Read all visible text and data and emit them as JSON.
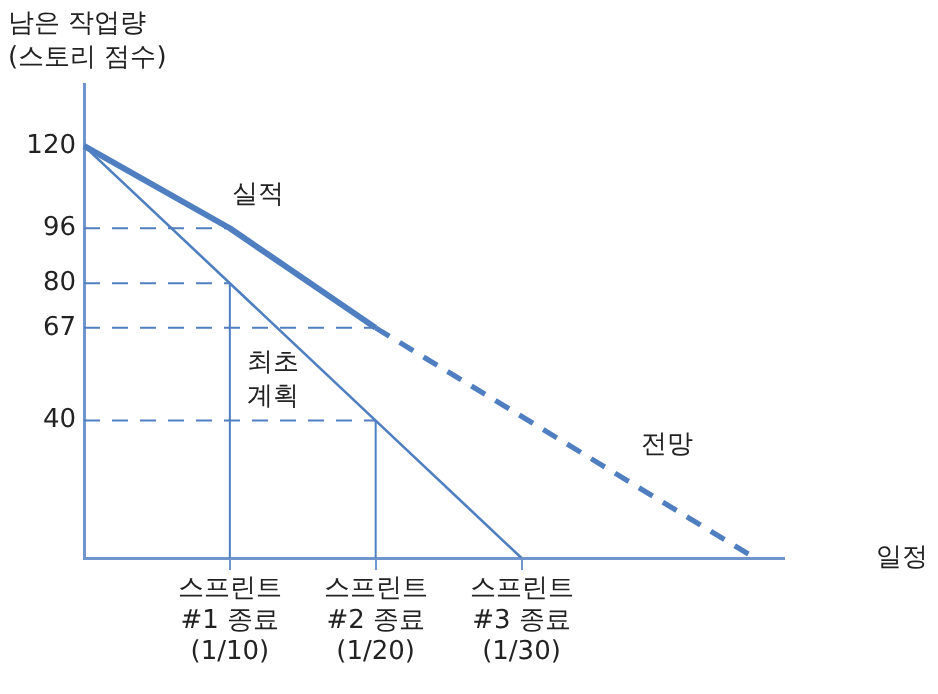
{
  "chart_data": {
    "type": "line",
    "ylabel": "남은 작업량\n(스토리 점수)",
    "xlabel": "일정",
    "categories": [
      null,
      null,
      null,
      null,
      null,
      "스프린트\n#1 종료\n(1/10)",
      null,
      null,
      null,
      null,
      "스프린트\n#2 종료\n(1/20)",
      null,
      null,
      null,
      null,
      "스프린트\n#3 종료\n(1/30)",
      null,
      null,
      null,
      null,
      null,
      null,
      null,
      null,
      null
    ],
    "ylim": [
      0,
      138
    ],
    "yticks": [
      40,
      67,
      80,
      96,
      120
    ],
    "grid": false,
    "legend": false,
    "series": [
      {
        "name": "실적",
        "color": "#4f7fc0",
        "line_style": "solid",
        "values": [
          120,
          null,
          null,
          null,
          null,
          96,
          null,
          null,
          null,
          null,
          67,
          null,
          null,
          null,
          null,
          null,
          null,
          null,
          null,
          null,
          null,
          null,
          null,
          null,
          null
        ]
      },
      {
        "name": "최초\n계획",
        "color": "#4f7fc0",
        "line_style": "solid",
        "values": [
          120,
          null,
          null,
          null,
          null,
          80,
          null,
          null,
          null,
          null,
          40,
          null,
          null,
          null,
          null,
          0,
          null,
          null,
          null,
          null,
          null,
          null,
          null,
          null,
          null
        ]
      },
      {
        "name": "전망",
        "color": "#4f7fc0",
        "line_style": "dashed",
        "values": [
          null,
          null,
          null,
          null,
          null,
          null,
          null,
          null,
          null,
          null,
          67,
          null,
          null,
          null,
          null,
          null,
          null,
          null,
          null,
          null,
          null,
          null,
          null,
          0,
          null
        ]
      }
    ],
    "ref_lines": [
      {
        "axis": "y",
        "value": 96,
        "line_style": "dashed",
        "color": "#4f7fc0"
      },
      {
        "axis": "y",
        "value": 80,
        "line_style": "dashed",
        "color": "#4f7fc0"
      },
      {
        "axis": "y",
        "value": 67,
        "line_style": "dashed",
        "color": "#4f7fc0"
      },
      {
        "axis": "y",
        "value": 40,
        "line_style": "dashed",
        "color": "#4f7fc0"
      },
      {
        "axis": "x",
        "value": "스프린트\n#1 종료\n(1/10)",
        "line_style": "solid",
        "color": "#4f7fc0"
      },
      {
        "axis": "x",
        "value": "스프린트\n#2 종료\n(1/20)",
        "line_style": "solid",
        "color": "#4f7fc0"
      }
    ]
  }
}
